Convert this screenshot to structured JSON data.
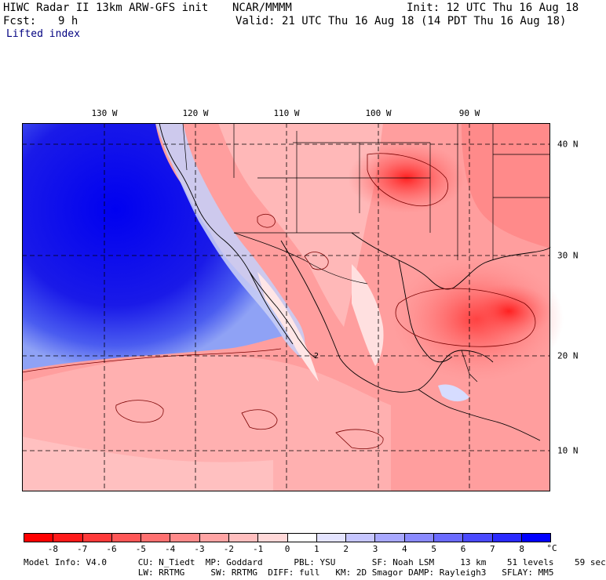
{
  "header": {
    "title_left": "HIWC Radar II 13km ARW-GFS init",
    "source": "NCAR/MMMM",
    "init": "Init: 12 UTC Thu 16 Aug 18",
    "fcst_label": "Fcst:",
    "fcst_value": "9 h",
    "valid": "Valid: 21 UTC Thu 16 Aug 18 (14 PDT Thu 16 Aug 18)",
    "field": "Lifted index"
  },
  "map": {
    "lon_labels": [
      "130 W",
      "120 W",
      "110 W",
      "100 W",
      "90 W"
    ],
    "lat_labels": [
      "40 N",
      "30 N",
      "20 N",
      "10 N"
    ],
    "contour_label": "2"
  },
  "colorbar": {
    "unit": "°C",
    "ticks": [
      "-8",
      "-7",
      "-6",
      "-5",
      "-4",
      "-3",
      "-2",
      "-1",
      "0",
      "1",
      "2",
      "3",
      "4",
      "5",
      "6",
      "7",
      "8"
    ],
    "colors": [
      "#ff0000",
      "#ff1a1a",
      "#ff3a3a",
      "#ff5757",
      "#ff7070",
      "#ff8a8a",
      "#ffa4a4",
      "#ffbebe",
      "#ffd8d8",
      "#ffffff",
      "#e4e4ff",
      "#c6c6ff",
      "#a8a8ff",
      "#8a8aff",
      "#6b6bff",
      "#4a4aff",
      "#2a2aff",
      "#0000ff"
    ]
  },
  "model_info": {
    "line1": "Model Info: V4.0      CU: N_Tiedt  MP: Goddard      PBL: YSU       SF: Noah LSM     13 km    51 levels    59 sec",
    "line2": "                      LW: RRTMG     SW: RRTMG  DIFF: full   KM: 2D Smagor DAMP: Rayleigh3   SFLAY: MM5"
  }
}
